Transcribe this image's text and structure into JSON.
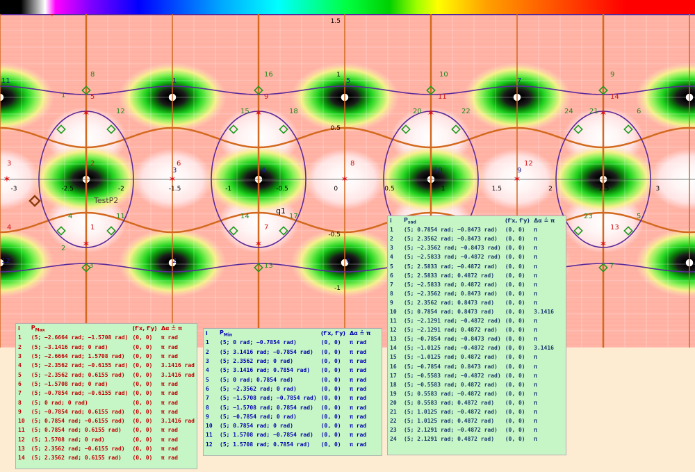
{
  "plot": {
    "colorbar": "color-scale",
    "x_ticks": [
      "-3",
      "-2.5",
      "-2",
      "-1.5",
      "-1",
      "-0.5",
      "0",
      "0.5",
      "1",
      "1.5",
      "2",
      "2.5",
      "3"
    ],
    "y_ticks": [
      "1.5",
      "1",
      "0.5",
      "-0.5",
      "-1"
    ],
    "labels": {
      "test_point": "TestP2",
      "curve": "q1"
    },
    "max_labels": [
      {
        "t": "1",
        "x": 120,
        "y": 351
      },
      {
        "t": "2",
        "x": 120,
        "y": 262
      },
      {
        "t": "3",
        "x": 120,
        "y": 145
      },
      {
        "t": "4",
        "x": 370,
        "y": 145
      },
      {
        "t": "5",
        "x": 370,
        "y": 262
      },
      {
        "t": "6",
        "x": 370,
        "y": 351
      },
      {
        "t": "7",
        "x": 496,
        "y": 262
      },
      {
        "t": "8",
        "x": 620,
        "y": 351
      },
      {
        "t": "9",
        "x": 620,
        "y": 262
      },
      {
        "t": "10",
        "x": 620,
        "y": 145
      },
      {
        "t": "11",
        "x": 868,
        "y": 351
      },
      {
        "t": "12",
        "x": 868,
        "y": 262
      },
      {
        "t": "13",
        "x": 868,
        "y": 145
      },
      {
        "t": "14",
        "x": 996,
        "y": 262
      }
    ],
    "min_labels": [
      {
        "t": "1",
        "x": 248,
        "y": 119
      },
      {
        "t": "2",
        "x": 248,
        "y": 378
      },
      {
        "t": "3",
        "x": 248,
        "y": 248
      },
      {
        "t": "4",
        "x": 376,
        "y": 248
      },
      {
        "t": "5",
        "x": 498,
        "y": 119
      },
      {
        "t": "6",
        "x": 498,
        "y": 378
      },
      {
        "t": "7",
        "x": 744,
        "y": 119
      },
      {
        "t": "8",
        "x": 744,
        "y": 378
      },
      {
        "t": "9",
        "x": 744,
        "y": 248
      },
      {
        "t": "10",
        "x": 624,
        "y": 248
      },
      {
        "t": "11",
        "x": 2,
        "y": 119
      },
      {
        "t": "12",
        "x": 2,
        "y": 378
      }
    ],
    "saddle_labels": [
      {
        "t": "1",
        "x": 88,
        "y": 140
      },
      {
        "t": "2",
        "x": 88,
        "y": 360
      },
      {
        "t": "3",
        "x": 128,
        "y": 385
      },
      {
        "t": "4",
        "x": 98,
        "y": 314
      },
      {
        "t": "5",
        "x": 916,
        "y": 314
      },
      {
        "t": "6",
        "x": 916,
        "y": 163
      },
      {
        "t": "7",
        "x": 877,
        "y": 385
      },
      {
        "t": "8",
        "x": 130,
        "y": 110
      },
      {
        "t": "9",
        "x": 878,
        "y": 110
      },
      {
        "t": "10",
        "x": 632,
        "y": 110
      },
      {
        "t": "11",
        "x": 167,
        "y": 314
      },
      {
        "t": "12",
        "x": 167,
        "y": 163
      },
      {
        "t": "13",
        "x": 380,
        "y": 385
      },
      {
        "t": "14",
        "x": 346,
        "y": 314
      },
      {
        "t": "15",
        "x": 346,
        "y": 163
      },
      {
        "t": "16",
        "x": 380,
        "y": 110
      },
      {
        "t": "17",
        "x": 416,
        "y": 314
      },
      {
        "t": "18",
        "x": 416,
        "y": 163
      },
      {
        "t": "19",
        "x": 626,
        "y": 385
      },
      {
        "t": "20",
        "x": 594,
        "y": 163
      },
      {
        "t": "21",
        "x": 848,
        "y": 163
      },
      {
        "t": "22",
        "x": 664,
        "y": 163
      },
      {
        "t": "23",
        "x": 840,
        "y": 314
      },
      {
        "t": "24",
        "x": 812,
        "y": 163
      }
    ],
    "star_labels": [
      {
        "t": "1",
        "x": 130,
        "y": 330
      },
      {
        "t": "2",
        "x": 130,
        "y": 238
      },
      {
        "t": "3",
        "x": 10,
        "y": 238
      },
      {
        "t": "4",
        "x": 10,
        "y": 330
      },
      {
        "t": "5",
        "x": 130,
        "y": 142
      },
      {
        "t": "6",
        "x": 254,
        "y": 238
      },
      {
        "t": "7",
        "x": 380,
        "y": 330
      },
      {
        "t": "8",
        "x": 504,
        "y": 238
      },
      {
        "t": "9",
        "x": 380,
        "y": 142
      },
      {
        "t": "11",
        "x": 630,
        "y": 142
      },
      {
        "t": "12",
        "x": 754,
        "y": 238
      },
      {
        "t": "13",
        "x": 878,
        "y": 330
      },
      {
        "t": "14",
        "x": 878,
        "y": 142
      }
    ]
  },
  "table_max": {
    "header": {
      "i": "i",
      "p": "P",
      "p_sub": "Max",
      "grad": "(f'x, f'y)",
      "da": "Δα",
      "da_eq": "≟",
      "pi": "π"
    },
    "rows": [
      {
        "i": "1",
        "p": "(5; −2.6664 rad; −1.5708 rad)",
        "g": "(0, 0)",
        "a": "π rad"
      },
      {
        "i": "2",
        "p": "(5; −3.1416 rad; 0 rad)",
        "g": "(0, 0)",
        "a": "π rad"
      },
      {
        "i": "3",
        "p": "(5; −2.6664 rad; 1.5708 rad)",
        "g": "(0, 0)",
        "a": "π rad"
      },
      {
        "i": "4",
        "p": "(5; −2.3562 rad; −0.6155 rad)",
        "g": "(0, 0)",
        "a": "3.1416 rad"
      },
      {
        "i": "5",
        "p": "(5; −2.3562 rad; 0.6155 rad)",
        "g": "(0, 0)",
        "a": "3.1416 rad"
      },
      {
        "i": "6",
        "p": "(5; −1.5708 rad; 0 rad)",
        "g": "(0, 0)",
        "a": "π rad"
      },
      {
        "i": "7",
        "p": "(5; −0.7854 rad; −0.6155 rad)",
        "g": "(0, 0)",
        "a": "π rad"
      },
      {
        "i": "8",
        "p": "(5; 0 rad; 0 rad)",
        "g": "(0, 0)",
        "a": "π rad"
      },
      {
        "i": "9",
        "p": "(5; −0.7854 rad; 0.6155 rad)",
        "g": "(0, 0)",
        "a": "π rad"
      },
      {
        "i": "10",
        "p": "(5; 0.7854 rad; −0.6155 rad)",
        "g": "(0, 0)",
        "a": "3.1416 rad"
      },
      {
        "i": "11",
        "p": "(5; 0.7854 rad; 0.6155 rad)",
        "g": "(0, 0)",
        "a": "π rad"
      },
      {
        "i": "12",
        "p": "(5; 1.5708 rad; 0 rad)",
        "g": "(0, 0)",
        "a": "π rad"
      },
      {
        "i": "13",
        "p": "(5; 2.3562 rad; −0.6155 rad)",
        "g": "(0, 0)",
        "a": "π rad"
      },
      {
        "i": "14",
        "p": "(5; 2.3562 rad; 0.6155 rad)",
        "g": "(0, 0)",
        "a": "π rad"
      }
    ]
  },
  "table_min": {
    "header": {
      "i": "i",
      "p": "P",
      "p_sub": "Min",
      "grad": "(f'x, f'y)",
      "da": "Δα",
      "da_eq": "≟",
      "pi": "π"
    },
    "rows": [
      {
        "i": "1",
        "p": "(5; 0 rad; −0.7854 rad)",
        "g": "(0, 0)",
        "a": "π rad"
      },
      {
        "i": "2",
        "p": "(5; 3.1416 rad; −0.7854 rad)",
        "g": "(0, 0)",
        "a": "π rad"
      },
      {
        "i": "3",
        "p": "(5; 2.3562 rad; 0 rad)",
        "g": "(0, 0)",
        "a": "π rad"
      },
      {
        "i": "4",
        "p": "(5; 3.1416 rad; 0.7854 rad)",
        "g": "(0, 0)",
        "a": "π rad"
      },
      {
        "i": "5",
        "p": "(5; 0 rad; 0.7854 rad)",
        "g": "(0, 0)",
        "a": "π rad"
      },
      {
        "i": "6",
        "p": "(5; −2.3562 rad; 0 rad)",
        "g": "(0, 0)",
        "a": "π rad"
      },
      {
        "i": "7",
        "p": "(5; −1.5708 rad; −0.7854 rad)",
        "g": "(0, 0)",
        "a": "π rad"
      },
      {
        "i": "8",
        "p": "(5; −1.5708 rad; 0.7854 rad)",
        "g": "(0, 0)",
        "a": "π rad"
      },
      {
        "i": "9",
        "p": "(5; −0.7854 rad; 0 rad)",
        "g": "(0, 0)",
        "a": "π rad"
      },
      {
        "i": "10",
        "p": "(5; 0.7854 rad; 0 rad)",
        "g": "(0, 0)",
        "a": "π rad"
      },
      {
        "i": "11",
        "p": "(5; 1.5708 rad; −0.7854 rad)",
        "g": "(0, 0)",
        "a": "π rad"
      },
      {
        "i": "12",
        "p": "(5; 1.5708 rad; 0.7854 rad)",
        "g": "(0, 0)",
        "a": "π rad"
      }
    ]
  },
  "table_saddle": {
    "header": {
      "i": "i",
      "p": "P",
      "p_sub": "sad",
      "grad": "(f'x, f'y)",
      "da": "Δα",
      "da_eq": "≟",
      "pi": "π"
    },
    "rows": [
      {
        "i": "1",
        "p": "(5; 0.7854 rad; −0.8473 rad)",
        "g": "(0, 0)",
        "a": "π"
      },
      {
        "i": "2",
        "p": "(5; 2.3562 rad; −0.8473 rad)",
        "g": "(0, 0)",
        "a": "π"
      },
      {
        "i": "3",
        "p": "(5; −2.3562 rad; −0.8473 rad)",
        "g": "(0, 0)",
        "a": "π"
      },
      {
        "i": "4",
        "p": "(5; −2.5833 rad; −0.4872 rad)",
        "g": "(0, 0)",
        "a": "π"
      },
      {
        "i": "5",
        "p": "(5; 2.5833 rad; −0.4872 rad)",
        "g": "(0, 0)",
        "a": "π"
      },
      {
        "i": "6",
        "p": "(5; 2.5833 rad; 0.4872 rad)",
        "g": "(0, 0)",
        "a": "π"
      },
      {
        "i": "7",
        "p": "(5; −2.5833 rad; 0.4872 rad)",
        "g": "(0, 0)",
        "a": "π"
      },
      {
        "i": "8",
        "p": "(5; −2.3562 rad; 0.8473 rad)",
        "g": "(0, 0)",
        "a": "π"
      },
      {
        "i": "9",
        "p": "(5; 2.3562 rad; 0.8473 rad)",
        "g": "(0, 0)",
        "a": "π"
      },
      {
        "i": "10",
        "p": "(5; 0.7854 rad; 0.8473 rad)",
        "g": "(0, 0)",
        "a": "3.1416"
      },
      {
        "i": "11",
        "p": "(5; −2.1291 rad; −0.4872 rad)",
        "g": "(0, 0)",
        "a": "π"
      },
      {
        "i": "12",
        "p": "(5; −2.1291 rad; 0.4872 rad)",
        "g": "(0, 0)",
        "a": "π"
      },
      {
        "i": "13",
        "p": "(5; −0.7854 rad; −0.8473 rad)",
        "g": "(0, 0)",
        "a": "π"
      },
      {
        "i": "14",
        "p": "(5; −1.0125 rad; −0.4872 rad)",
        "g": "(0, 0)",
        "a": "3.1416"
      },
      {
        "i": "15",
        "p": "(5; −1.0125 rad; 0.4872 rad)",
        "g": "(0, 0)",
        "a": "π"
      },
      {
        "i": "16",
        "p": "(5; −0.7854 rad; 0.8473 rad)",
        "g": "(0, 0)",
        "a": "π"
      },
      {
        "i": "17",
        "p": "(5; −0.5583 rad; −0.4872 rad)",
        "g": "(0, 0)",
        "a": "π"
      },
      {
        "i": "18",
        "p": "(5; −0.5583 rad; 0.4872 rad)",
        "g": "(0, 0)",
        "a": "π"
      },
      {
        "i": "19",
        "p": "(5; 0.5583 rad; −0.4872 rad)",
        "g": "(0, 0)",
        "a": "π"
      },
      {
        "i": "20",
        "p": "(5; 0.5583 rad; 0.4872 rad)",
        "g": "(0, 0)",
        "a": "π"
      },
      {
        "i": "21",
        "p": "(5; 1.0125 rad; −0.4872 rad)",
        "g": "(0, 0)",
        "a": "π"
      },
      {
        "i": "22",
        "p": "(5; 1.0125 rad; 0.4872 rad)",
        "g": "(0, 0)",
        "a": "π"
      },
      {
        "i": "23",
        "p": "(5; 2.1291 rad; −0.4872 rad)",
        "g": "(0, 0)",
        "a": "π"
      },
      {
        "i": "24",
        "p": "(5; 2.1291 rad; 0.4872 rad)",
        "g": "(0, 0)",
        "a": "π"
      }
    ]
  }
}
